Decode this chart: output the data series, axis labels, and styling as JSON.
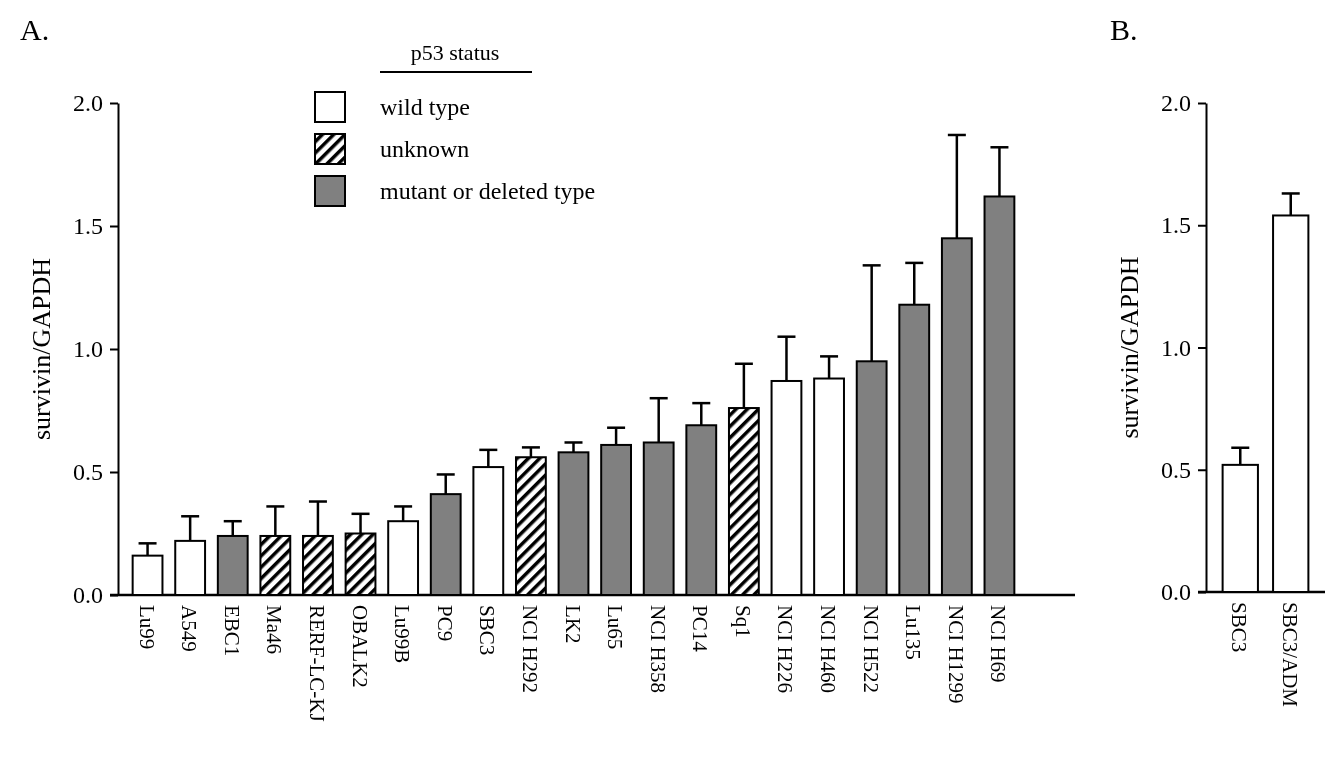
{
  "chart_data": [
    {
      "type": "bar",
      "title": "A.",
      "ylabel": "survivin/GAPDH",
      "legend_title": "p53 status",
      "legend": "top",
      "categories": [
        "Lu99",
        "A549",
        "EBC1",
        "Ma46",
        "RERF-LC-KJ",
        "OBALK2",
        "Lu99B",
        "PC9",
        "SBC3",
        "NCI H292",
        "LK2",
        "Lu65",
        "NCI H358",
        "PC14",
        "Sq1",
        "NCI H226",
        "NCI H460",
        "NCI H522",
        "Lu135",
        "NCI H1299",
        "NCI H69"
      ],
      "series": [
        {
          "name": "wild type",
          "color": "#ffffff",
          "values": [
            0.16,
            0.22,
            null,
            null,
            null,
            null,
            0.3,
            null,
            0.52,
            null,
            null,
            null,
            null,
            null,
            null,
            0.87,
            0.88,
            null,
            null,
            null,
            null
          ],
          "errors": [
            0.05,
            0.1,
            null,
            null,
            null,
            null,
            0.06,
            null,
            0.07,
            null,
            null,
            null,
            null,
            null,
            null,
            0.18,
            0.09,
            null,
            null,
            null,
            null
          ]
        },
        {
          "name": "unknown",
          "color": "#000000",
          "values": [
            null,
            null,
            null,
            0.24,
            0.24,
            0.25,
            null,
            null,
            null,
            0.56,
            null,
            null,
            null,
            null,
            0.76,
            null,
            null,
            null,
            null,
            null,
            null
          ],
          "errors": [
            null,
            null,
            null,
            0.12,
            0.14,
            0.08,
            null,
            null,
            null,
            0.04,
            null,
            null,
            null,
            null,
            0.18,
            null,
            null,
            null,
            null,
            null,
            null
          ]
        },
        {
          "name": "mutant or deleted type",
          "color": "#808080",
          "values": [
            null,
            null,
            0.24,
            null,
            null,
            null,
            null,
            0.41,
            null,
            null,
            0.58,
            0.61,
            0.62,
            0.69,
            null,
            null,
            null,
            0.95,
            1.18,
            1.45,
            1.62
          ],
          "errors": [
            null,
            null,
            0.06,
            null,
            null,
            null,
            null,
            0.08,
            null,
            null,
            0.04,
            0.07,
            0.18,
            0.09,
            null,
            null,
            null,
            0.39,
            0.17,
            0.42,
            0.2
          ]
        }
      ],
      "ylim": [
        0,
        2
      ],
      "yticks": [
        {
          "value": 0,
          "label": "0.0"
        },
        {
          "value": 0.5,
          "label": "0.5"
        },
        {
          "value": 1,
          "label": "1.0"
        },
        {
          "value": 1.5,
          "label": "1.5"
        },
        {
          "value": 2,
          "label": "2.0"
        }
      ]
    },
    {
      "type": "bar",
      "title": "B.",
      "ylabel": "survivin/GAPDH",
      "categories": [
        "SBC3",
        "SBC3/ADM"
      ],
      "series": [
        {
          "color": "#ffffff",
          "values": [
            0.52,
            1.54
          ],
          "errors": [
            0.07,
            0.09
          ]
        }
      ],
      "ylim": [
        0,
        2
      ],
      "yticks": [
        {
          "value": 0,
          "label": "0.0"
        },
        {
          "value": 0.5,
          "label": "0.5"
        },
        {
          "value": 1,
          "label": "1.0"
        },
        {
          "value": 1.5,
          "label": "1.5"
        },
        {
          "value": 2,
          "label": "2.0"
        }
      ]
    }
  ]
}
